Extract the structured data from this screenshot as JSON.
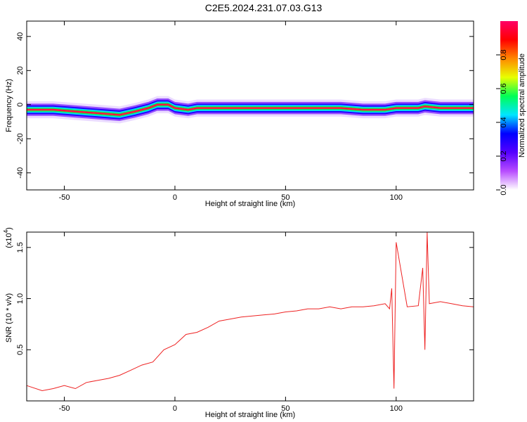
{
  "title": "C2E5.2024.231.07.03.G13",
  "chart_data": [
    {
      "type": "heatmap",
      "xlabel": "Height of straight line (km)",
      "ylabel": "Frequency (Hz)",
      "xlim": [
        -67,
        135
      ],
      "ylim": [
        -50,
        49
      ],
      "xticks": [
        -50,
        0,
        50,
        100
      ],
      "yticks": [
        -40,
        -20,
        0,
        20,
        40
      ],
      "colorbar": {
        "label": "Normalized spectral amplitude",
        "range": [
          0,
          1
        ],
        "ticks": [
          "0.0",
          "0.2",
          "0.4",
          "0.6",
          "0.8"
        ],
        "colors": [
          "#ffffff",
          "#b84dff",
          "#5500ff",
          "#0000ff",
          "#00e5ff",
          "#00ff55",
          "#e8ff00",
          "#ff8800",
          "#ff0000",
          "#ff0066"
        ]
      },
      "ridge": [
        {
          "x": -67,
          "y": -3
        },
        {
          "x": -55,
          "y": -3
        },
        {
          "x": -45,
          "y": -4
        },
        {
          "x": -35,
          "y": -5
        },
        {
          "x": -25,
          "y": -6
        },
        {
          "x": -18,
          "y": -4
        },
        {
          "x": -12,
          "y": -2
        },
        {
          "x": -8,
          "y": 0
        },
        {
          "x": -3,
          "y": 0
        },
        {
          "x": 0,
          "y": -2
        },
        {
          "x": 6,
          "y": -3
        },
        {
          "x": 10,
          "y": -2
        },
        {
          "x": 20,
          "y": -2
        },
        {
          "x": 40,
          "y": -2
        },
        {
          "x": 60,
          "y": -2
        },
        {
          "x": 75,
          "y": -2
        },
        {
          "x": 85,
          "y": -3
        },
        {
          "x": 95,
          "y": -3
        },
        {
          "x": 100,
          "y": -2
        },
        {
          "x": 110,
          "y": -2
        },
        {
          "x": 113,
          "y": -1
        },
        {
          "x": 120,
          "y": -2
        },
        {
          "x": 135,
          "y": -2
        }
      ]
    },
    {
      "type": "line",
      "xlabel": "Height of straight line (km)",
      "ylabel": "SNR (10 * v/v)",
      "yscale_label": "(x10",
      "yscale_exp": "4",
      "xlim": [
        -67,
        135
      ],
      "ylim": [
        0,
        1.65
      ],
      "xticks": [
        -50,
        0,
        50,
        100
      ],
      "yticks": [
        "0.5",
        "1.0",
        "1.5"
      ],
      "series": [
        {
          "color": "#ee2222",
          "x": [
            -67,
            -60,
            -55,
            -50,
            -45,
            -40,
            -35,
            -30,
            -25,
            -20,
            -15,
            -10,
            -5,
            0,
            5,
            10,
            15,
            20,
            25,
            30,
            35,
            40,
            45,
            50,
            55,
            60,
            65,
            70,
            75,
            80,
            85,
            90,
            95,
            97,
            98,
            99,
            100,
            105,
            110,
            112,
            113,
            114,
            115,
            120,
            125,
            130,
            135
          ],
          "y": [
            0.15,
            0.1,
            0.12,
            0.15,
            0.12,
            0.18,
            0.2,
            0.22,
            0.25,
            0.3,
            0.35,
            0.38,
            0.5,
            0.55,
            0.65,
            0.67,
            0.72,
            0.78,
            0.8,
            0.82,
            0.83,
            0.84,
            0.85,
            0.87,
            0.88,
            0.9,
            0.9,
            0.92,
            0.9,
            0.92,
            0.92,
            0.93,
            0.95,
            0.9,
            1.1,
            0.12,
            1.55,
            0.92,
            0.93,
            1.3,
            0.5,
            1.65,
            0.95,
            0.97,
            0.95,
            0.93,
            0.92
          ]
        }
      ]
    }
  ]
}
